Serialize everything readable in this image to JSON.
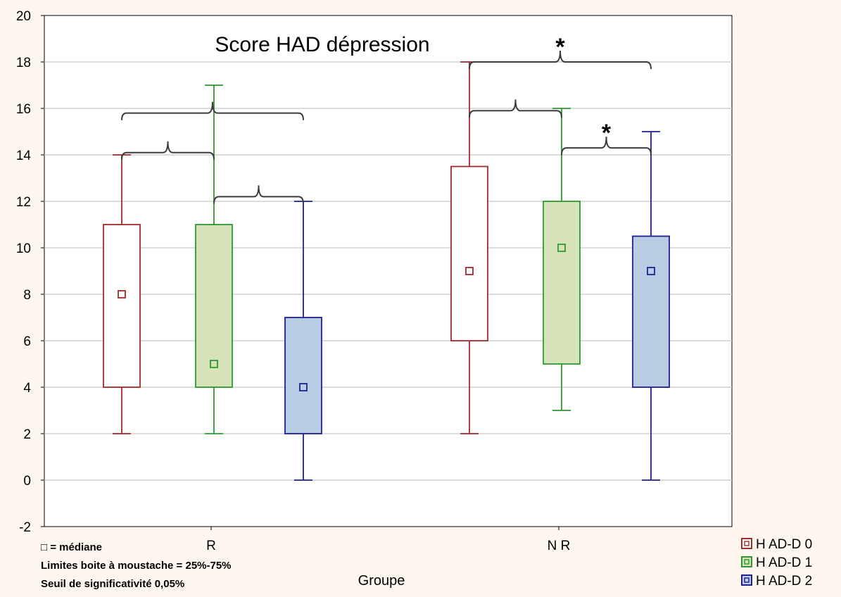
{
  "chart_data": {
    "type": "boxplot",
    "title": "Score HAD dépression",
    "xlabel": "Groupe",
    "ylabel": "",
    "ylim": [
      -2,
      20
    ],
    "yticks": [
      -2,
      0,
      2,
      4,
      6,
      8,
      10,
      12,
      14,
      16,
      18,
      20
    ],
    "grid": true,
    "categories": [
      "R",
      "N R"
    ],
    "legend_position": "bottom-right",
    "series": [
      {
        "name": "H AD-D 0",
        "color": "#a52a2a",
        "fill": "#ffffff",
        "boxes": [
          {
            "category": "R",
            "min": 2,
            "q1": 4,
            "median": 8,
            "q3": 11,
            "max": 14
          },
          {
            "category": "N R",
            "min": 2,
            "q1": 6,
            "median": 9,
            "q3": 13.5,
            "max": 18
          }
        ]
      },
      {
        "name": "H AD-D 1",
        "color": "#2e9a2e",
        "fill": "#d6e3b8",
        "boxes": [
          {
            "category": "R",
            "min": 2,
            "q1": 4,
            "median": 5,
            "q3": 11,
            "max": 17
          },
          {
            "category": "N R",
            "min": 3,
            "q1": 5,
            "median": 10,
            "q3": 12,
            "max": 16
          }
        ]
      },
      {
        "name": "H AD-D 2",
        "color": "#20208f",
        "fill": "#b8cce4",
        "boxes": [
          {
            "category": "R",
            "min": 0,
            "q1": 2,
            "median": 4,
            "q3": 7,
            "max": 12
          },
          {
            "category": "N R",
            "min": 0,
            "q1": 4,
            "median": 9,
            "q3": 10.5,
            "max": 15
          }
        ]
      }
    ],
    "comparisons": [
      {
        "category": "R",
        "from": "H AD-D 0",
        "to": "H AD-D 2",
        "y": 15.8,
        "significant": false
      },
      {
        "category": "R",
        "from": "H AD-D 0",
        "to": "H AD-D 1",
        "y": 14.1,
        "significant": false
      },
      {
        "category": "R",
        "from": "H AD-D 1",
        "to": "H AD-D 2",
        "y": 12.2,
        "significant": false
      },
      {
        "category": "N R",
        "from": "H AD-D 0",
        "to": "H AD-D 2",
        "y": 18.0,
        "significant": true
      },
      {
        "category": "N R",
        "from": "H AD-D 0",
        "to": "H AD-D 1",
        "y": 15.9,
        "significant": false
      },
      {
        "category": "N R",
        "from": "H AD-D 1",
        "to": "H AD-D 2",
        "y": 14.3,
        "significant": true
      }
    ],
    "significance_marker": "*",
    "notes": {
      "median_symbol": "□",
      "median_text": " = médiane",
      "whisker_text": "Limites boite à moustache = 25%-75%",
      "threshold_text": "Seuil de significativité 0,05%"
    }
  }
}
